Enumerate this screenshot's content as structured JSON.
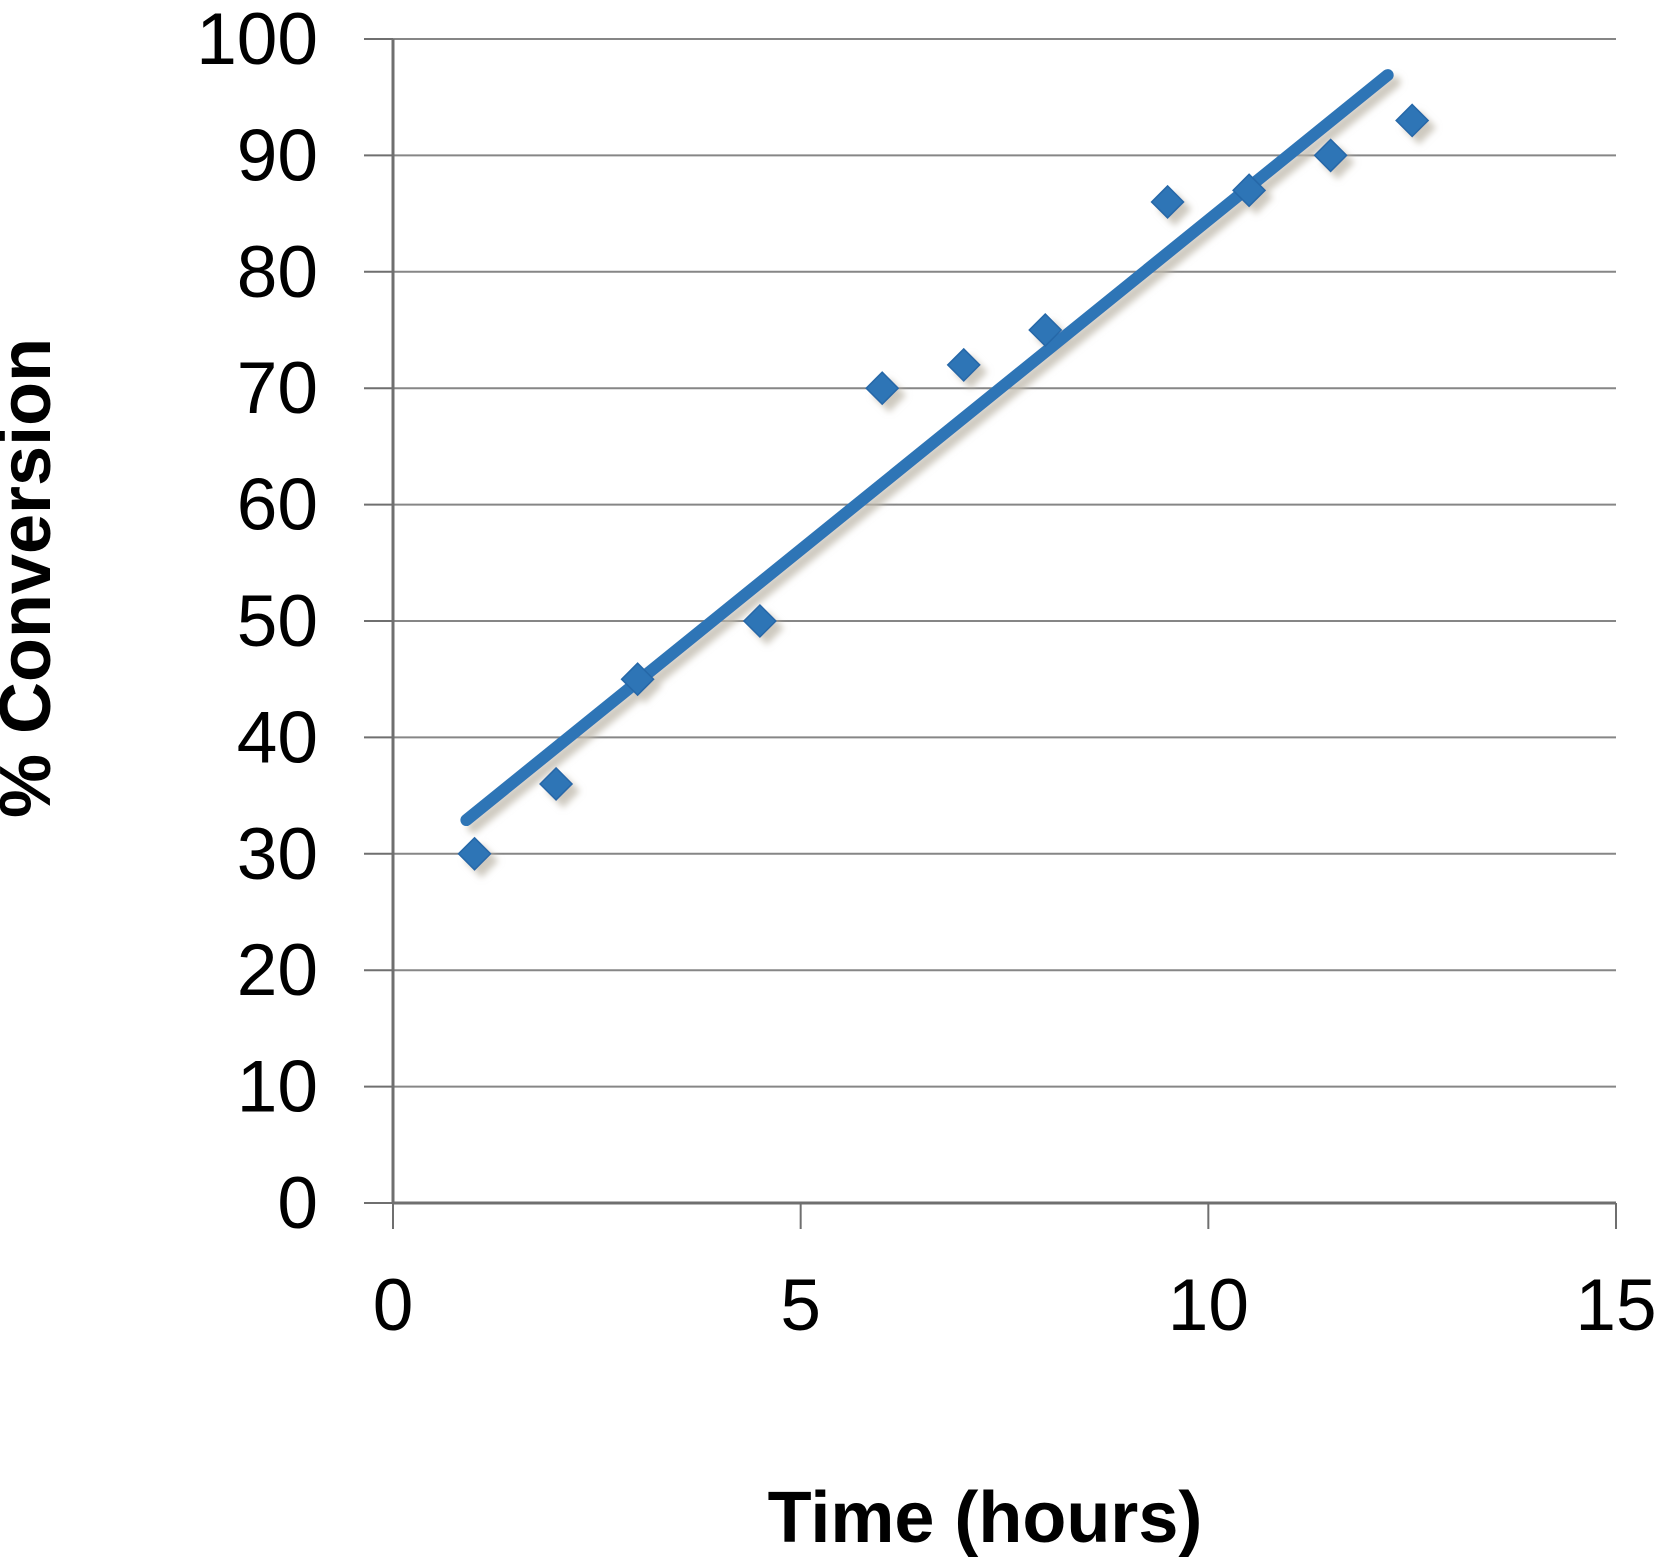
{
  "chart_data": {
    "type": "scatter",
    "title": "",
    "xlabel": "Time (hours)",
    "ylabel": "% Conversion",
    "xlim": [
      0,
      15
    ],
    "ylim": [
      0,
      100
    ],
    "xticks": [
      0,
      5,
      10,
      15
    ],
    "yticks": [
      0,
      10,
      20,
      30,
      40,
      50,
      60,
      70,
      80,
      90,
      100
    ],
    "grid": "horizontal-only",
    "legend": "none",
    "series": [
      {
        "marker": "diamond",
        "color": "#2E75B6",
        "points": [
          {
            "x": 1,
            "y": 30
          },
          {
            "x": 2,
            "y": 36
          },
          {
            "x": 3,
            "y": 45
          },
          {
            "x": 4.5,
            "y": 50
          },
          {
            "x": 6,
            "y": 70
          },
          {
            "x": 7,
            "y": 72
          },
          {
            "x": 8,
            "y": 75
          },
          {
            "x": 9.5,
            "y": 86
          },
          {
            "x": 10.5,
            "y": 87
          },
          {
            "x": 11.5,
            "y": 90
          },
          {
            "x": 12.5,
            "y": 93
          }
        ]
      }
    ],
    "trendline": {
      "type": "linear",
      "color": "#2E75B6",
      "x_start": 0.9,
      "y_start": 32.9,
      "x_end": 12.2,
      "y_end": 96.9
    },
    "colors": {
      "marker": "#2E75B6",
      "marker_edge": "#2567A8",
      "trendline": "#2E75B6",
      "gridline": "#868686",
      "axis": "#6F6F6F",
      "text": "#000000"
    }
  }
}
